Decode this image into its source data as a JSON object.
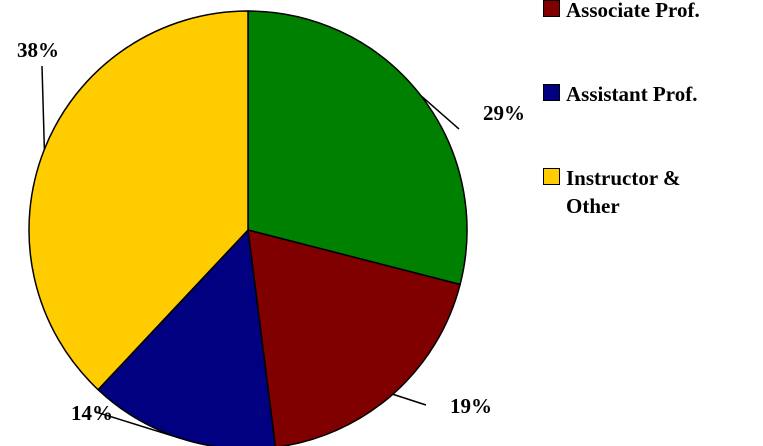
{
  "chart_data": {
    "type": "pie",
    "categories": [
      null,
      "Associate Prof.",
      "Assistant Prof.",
      "Instructor & Other"
    ],
    "values": [
      29,
      19,
      14,
      38
    ],
    "value_labels": [
      "29%",
      "19%",
      "14%",
      "38%"
    ],
    "colors": [
      "#008000",
      "#800000",
      "#000080",
      "#ffcc00"
    ]
  }
}
